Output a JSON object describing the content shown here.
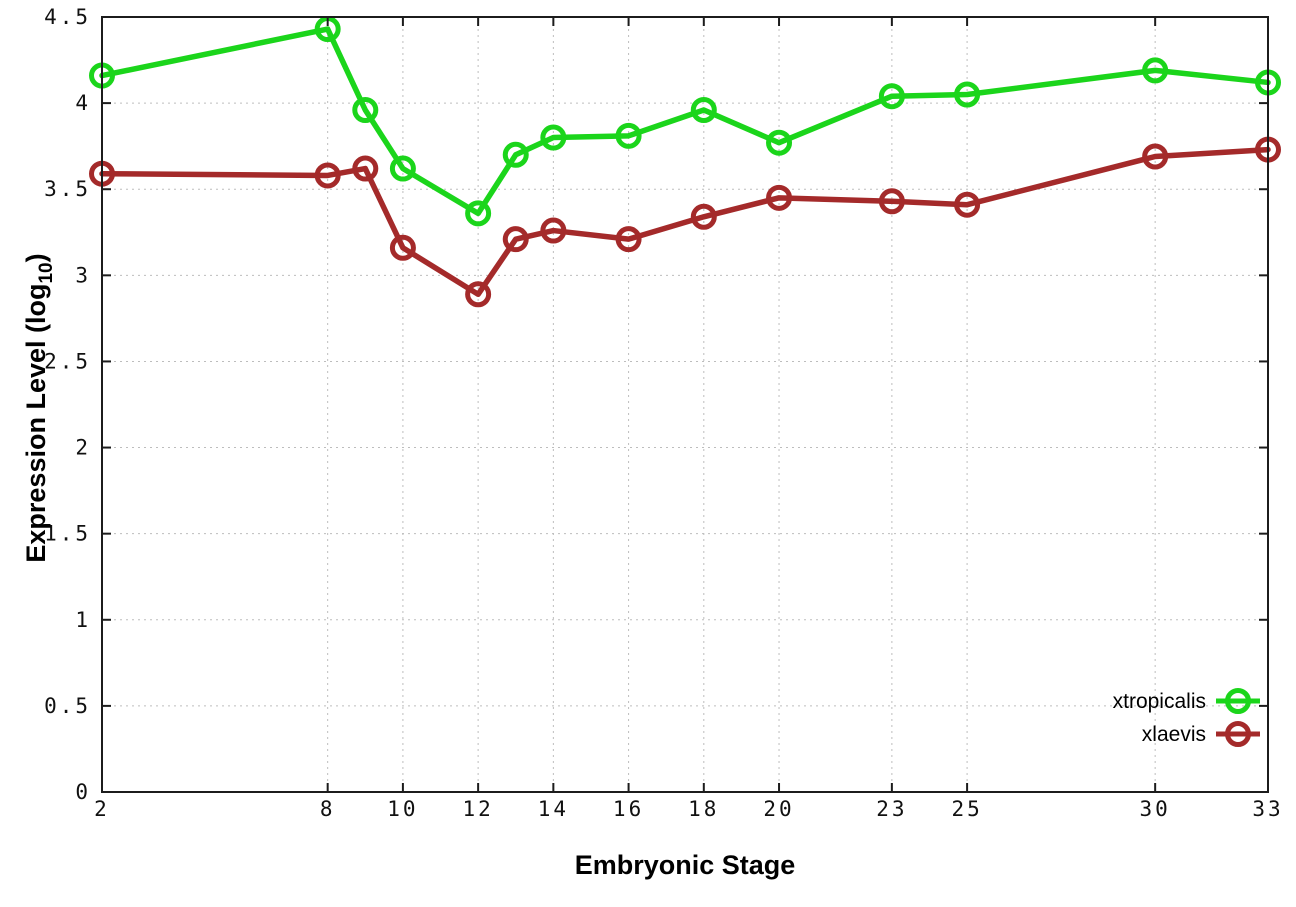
{
  "chart_data": {
    "type": "line",
    "title": "",
    "xlabel": "Embryonic Stage",
    "ylabel": {
      "main": "Expression Level (log",
      "sub": "10",
      "end": ")"
    },
    "xlim": [
      2,
      33
    ],
    "ylim": [
      0,
      4.5
    ],
    "grid": true,
    "legend_position": "inside bottom-right",
    "x": [
      2,
      8,
      9,
      10,
      12,
      13,
      14,
      16,
      18,
      20,
      23,
      25,
      30,
      33
    ],
    "x_tick_values": [
      2,
      8,
      10,
      12,
      14,
      16,
      18,
      20,
      23,
      25,
      30,
      33
    ],
    "x_tick_labels": [
      "2",
      "8",
      "10",
      "12",
      "14",
      "16",
      "18",
      "20",
      "23",
      "25",
      "30",
      "33"
    ],
    "y_tick_values": [
      0,
      0.5,
      1,
      1.5,
      2,
      2.5,
      3,
      3.5,
      4,
      4.5
    ],
    "y_tick_labels": [
      "0",
      "0.5",
      "1",
      "1.5",
      "2",
      "2.5",
      "3",
      "3.5",
      "4",
      "4.5"
    ],
    "series": [
      {
        "name": "xtropicalis",
        "color": "#1bd51b",
        "marker": "open-circle",
        "values": [
          4.16,
          4.43,
          3.96,
          3.62,
          3.36,
          3.7,
          3.8,
          3.81,
          3.96,
          3.77,
          4.04,
          4.05,
          4.19,
          4.12
        ]
      },
      {
        "name": "xlaevis",
        "color": "#a42a2a",
        "marker": "open-circle",
        "values": [
          3.59,
          3.58,
          3.62,
          3.16,
          2.89,
          3.21,
          3.26,
          3.21,
          3.34,
          3.45,
          3.43,
          3.41,
          3.69,
          3.73
        ]
      }
    ]
  },
  "colors": {
    "background": "#ffffff",
    "plot_border": "#1c1c1c",
    "grid": "#bdbdbd",
    "tick_text": "#111111",
    "series_green": "#1bd51b",
    "series_dark_red": "#a42a2a"
  }
}
